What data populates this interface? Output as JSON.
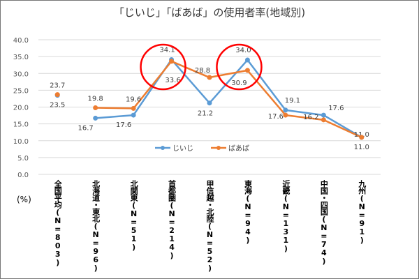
{
  "chart_data": {
    "type": "line",
    "title": "「じいじ」「ばあば」の使用者率(地域別)",
    "ylabel": "(%)",
    "ylim": [
      0,
      40
    ],
    "yticks": [
      "0.0",
      "5.0",
      "10.0",
      "15.0",
      "20.0",
      "25.0",
      "30.0",
      "35.0",
      "40.0"
    ],
    "grid": true,
    "legend_placement": "inside-bottom-center",
    "categories": [
      "全国平均(N=803)",
      "北海道・東北(N=96)",
      "北関東(N=51)",
      "首都圏(N=214)",
      "甲信越・北陸(N=52)",
      "東海(N=94)",
      "近畿(N=131)",
      "中国・四国(N=74)",
      "九州(N=91)"
    ],
    "series": [
      {
        "name": "じいじ",
        "color": "#5B9BD5",
        "values": [
          23.5,
          16.7,
          17.6,
          34.1,
          21.2,
          34.0,
          19.1,
          17.6,
          11.0
        ],
        "labels": [
          "23.5",
          "16.7",
          "17.6",
          "34.1",
          "21.2",
          "34.0",
          "19.1",
          "17.6",
          "11.0"
        ]
      },
      {
        "name": "ばあば",
        "color": "#ED7D31",
        "values": [
          23.7,
          19.8,
          19.6,
          33.6,
          28.8,
          30.9,
          17.6,
          16.2,
          11.0
        ],
        "labels": [
          "23.7",
          "19.8",
          "19.6",
          "33.6",
          "28.8",
          "30.9",
          "17.6",
          "16.2",
          "11.0"
        ]
      }
    ],
    "annotations": [
      {
        "type": "circle",
        "color": "#FF0000",
        "category": "首都圏(N=214)"
      },
      {
        "type": "circle",
        "color": "#FF0000",
        "category": "東海(N=94)"
      }
    ]
  }
}
